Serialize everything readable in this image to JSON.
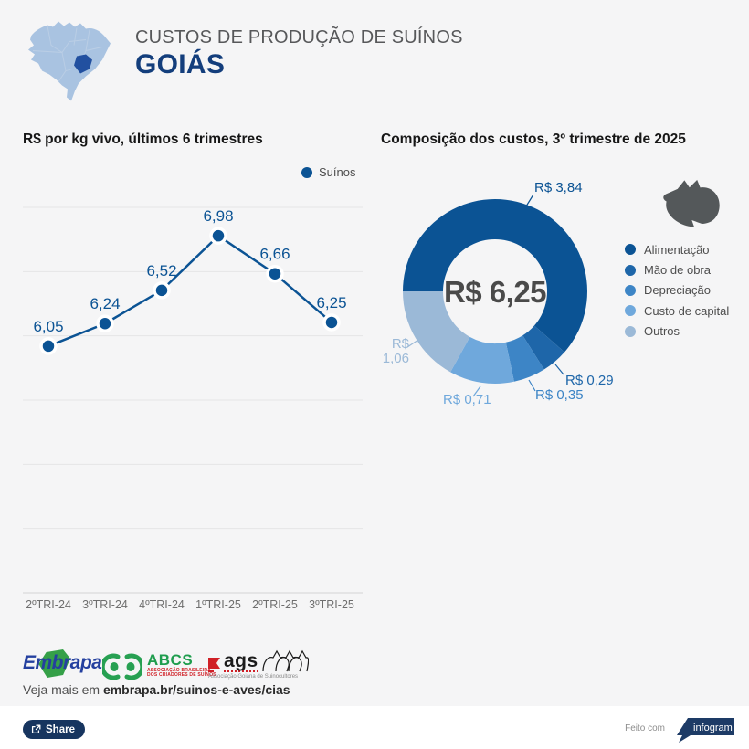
{
  "header": {
    "kicker": "CUSTOS DE PRODUÇÃO DE SUÍNOS",
    "title": "GOIÁS"
  },
  "colors": {
    "accent_blue": "#0b5394",
    "title_navy": "#133e7c",
    "background": "#f5f5f6",
    "map_light": "#a9c3e1",
    "map_highlight": "#2250a0"
  },
  "icons": {
    "brazil_map": "brazil-map-icon",
    "pig": "pig-silhouette-icon",
    "share": "share-icon",
    "legend_dot": "dot-icon"
  },
  "chart_data": [
    {
      "type": "line",
      "title": "R$ por kg vivo, últimos 6 trimestres",
      "categories": [
        "2ºTRI-24",
        "3ºTRI-24",
        "4ºTRI-24",
        "1ºTRI-25",
        "2ºTRI-25",
        "3ºTRI-25"
      ],
      "series": [
        {
          "name": "Suínos",
          "values": [
            6.05,
            6.24,
            6.52,
            6.98,
            6.66,
            6.25
          ]
        }
      ],
      "value_labels": [
        "6,05",
        "6,24",
        "6,52",
        "6,98",
        "6,66",
        "6,25"
      ],
      "ylim": [
        3.97,
        7.22
      ],
      "grid": true,
      "legend_position": "top-right",
      "color": "#0b5394"
    },
    {
      "type": "pie",
      "subtype": "donut",
      "title": "Composição dos custos, 3º trimestre de 2025",
      "center_label": "R$ 6,25",
      "total": 6.25,
      "start_angle_deg": 180,
      "direction": "clockwise",
      "legend_position": "right",
      "slices": [
        {
          "label": "Alimentação",
          "value": 3.84,
          "display": "R$ 3,84",
          "color": "#0b5394"
        },
        {
          "label": "Mão de obra",
          "value": 0.29,
          "display": "R$ 0,29",
          "color": "#1e66a9"
        },
        {
          "label": "Depreciação",
          "value": 0.35,
          "display": "R$ 0,35",
          "color": "#3d85c6"
        },
        {
          "label": "Custo de capital",
          "value": 0.71,
          "display": "R$ 0,71",
          "color": "#6fa8dc"
        },
        {
          "label": "Outros",
          "value": 1.06,
          "display": "R$ 1,06",
          "color": "#9bb9d7"
        }
      ]
    }
  ],
  "footer": {
    "embrapa_name": "Embrapa",
    "abcs_name": "ABCS",
    "abcs_sub1": "ASSOCIAÇÃO BRASILEIRA",
    "abcs_sub2": "DOS CRIADORES DE SUÍNOS",
    "ags_name": "ags",
    "ags_sub": "Associação Goiana de Suinocultores",
    "more_prefix": "Veja mais em ",
    "more_link": "embrapa.br/suinos-e-aves/cias"
  },
  "bottom_bar": {
    "share_label": "Share",
    "made_with": "Feito com",
    "badge": "infogram"
  }
}
